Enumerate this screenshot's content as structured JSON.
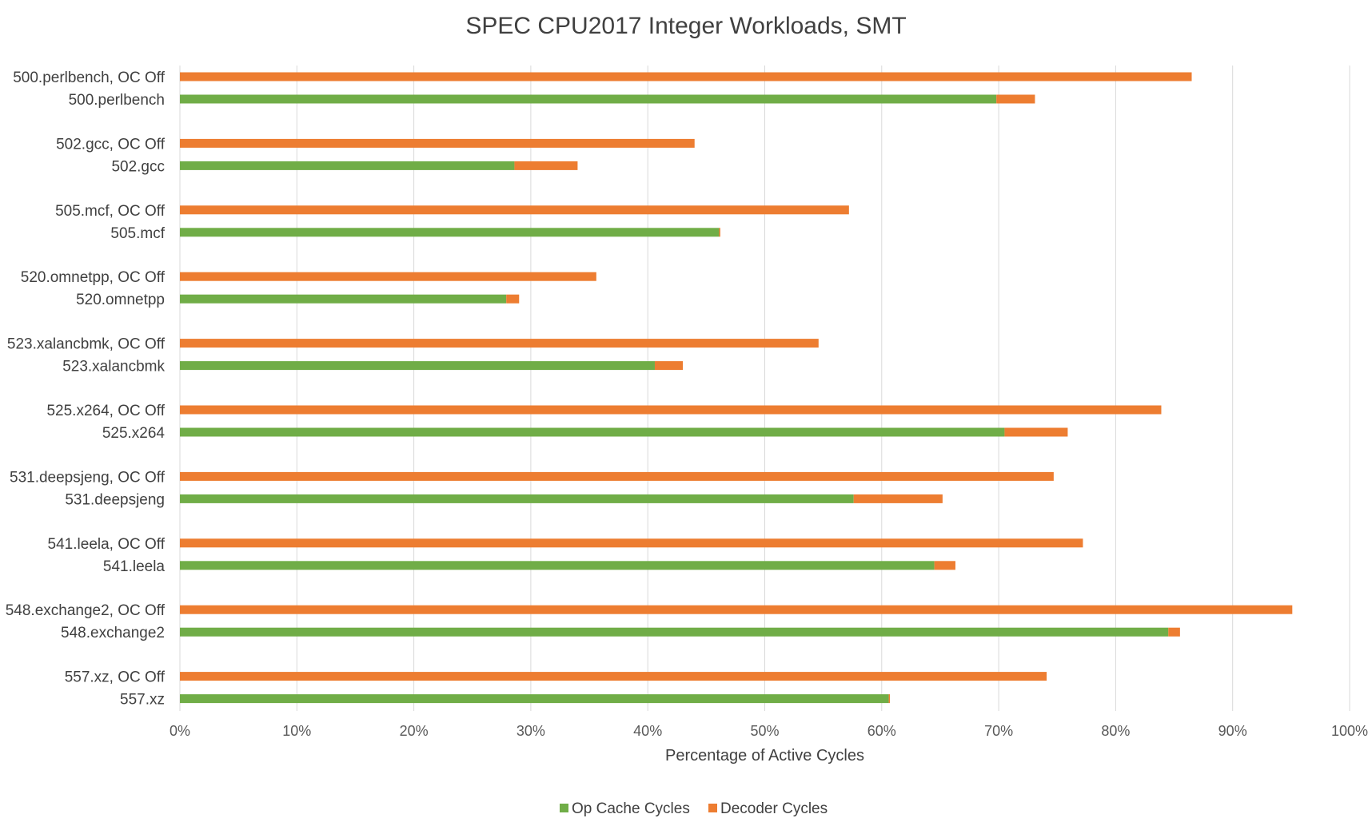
{
  "chart_data": {
    "type": "bar",
    "orientation": "horizontal",
    "stacked": true,
    "title": "SPEC CPU2017 Integer Workloads, SMT",
    "xlabel": "Percentage of Active Cycles",
    "ylabel": "",
    "xlim": [
      0,
      100
    ],
    "x_ticks": [
      "0%",
      "10%",
      "20%",
      "30%",
      "40%",
      "50%",
      "60%",
      "70%",
      "80%",
      "90%",
      "100%"
    ],
    "grid": true,
    "legend_position": "bottom",
    "categories": [
      "500.perlbench, OC Off",
      "500.perlbench",
      "502.gcc, OC Off",
      "502.gcc",
      "505.mcf, OC Off",
      "505.mcf",
      "520.omnetpp, OC Off",
      "520.omnetpp",
      "523.xalancbmk, OC Off",
      "523.xalancbmk",
      "525.x264, OC Off",
      "525.x264",
      "531.deepsjeng, OC Off",
      "531.deepsjeng",
      "541.leela, OC Off",
      "541.leela",
      "548.exchange2, OC Off",
      "548.exchange2",
      "557.xz, OC Off",
      "557.xz"
    ],
    "series": [
      {
        "name": "Op Cache Cycles",
        "color": "#70ad47",
        "values": [
          0,
          69.8,
          0,
          28.6,
          0,
          46.1,
          0,
          27.9,
          0,
          40.6,
          0,
          70.5,
          0,
          57.6,
          0,
          64.5,
          0,
          84.5,
          0,
          60.6
        ]
      },
      {
        "name": "Decoder Cycles",
        "color": "#ed7d31",
        "values": [
          86.5,
          3.3,
          44.0,
          5.4,
          57.2,
          0.1,
          35.6,
          1.1,
          54.6,
          2.4,
          83.9,
          5.4,
          74.7,
          7.6,
          77.2,
          1.8,
          95.1,
          1.0,
          74.1,
          0.1
        ]
      }
    ]
  }
}
